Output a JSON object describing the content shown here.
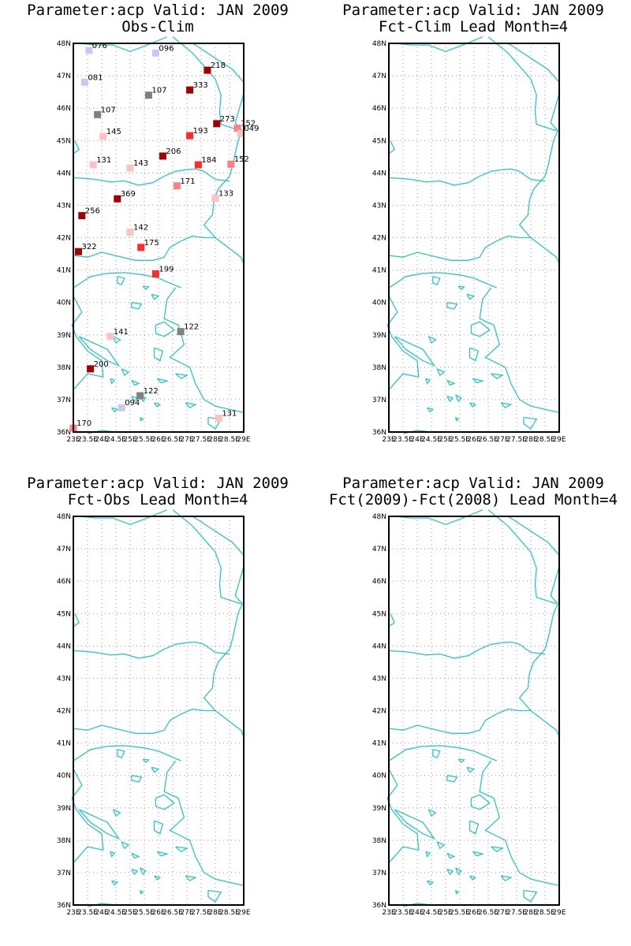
{
  "colors": {
    "coast": "#2ec4c4",
    "frame": "#000000",
    "grid": "#999999",
    "neg_light": "#c8c8f5",
    "neutral": "#808080",
    "pos_light": "#ffc0c0",
    "pos_mid": "#ff7f7f",
    "pos_strong": "#ff2a2a",
    "pos_dark": "#a00000"
  },
  "axes": {
    "lat_labels": [
      "36N",
      "37N",
      "38N",
      "39N",
      "40N",
      "41N",
      "42N",
      "43N",
      "44N",
      "45N",
      "46N",
      "47N",
      "48N"
    ],
    "lon_labels": [
      "23E",
      "23.5E",
      "24E",
      "24.5E",
      "25E",
      "25.5E",
      "26E",
      "26.5E",
      "27E",
      "27.5E",
      "28E",
      "28.5E",
      "29E"
    ],
    "lon_range": [
      23,
      29
    ],
    "lat_range": [
      36,
      48
    ],
    "grid": true
  },
  "panels": [
    {
      "title_line1": "Parameter:acp Valid: JAN 2009",
      "title_line2": "Obs-Clim",
      "has_stations": true
    },
    {
      "title_line1": "Parameter:acp Valid: JAN 2009",
      "title_line2": "Fct-Clim Lead Month=4",
      "has_stations": false
    },
    {
      "title_line1": "Parameter:acp Valid: JAN 2009",
      "title_line2": "Fct-Obs Lead Month=4",
      "has_stations": false
    },
    {
      "title_line1": "Parameter:acp Valid: JAN 2009",
      "title_line2": "Fct(2009)-Fct(2008) Lead Month=4",
      "has_stations": false
    }
  ],
  "chart_data": {
    "type": "scatter",
    "title": "Parameter:acp Valid: JAN 2009 Obs-Clim",
    "xlabel": "",
    "ylabel": "",
    "xlim": [
      23,
      29
    ],
    "ylim": [
      36,
      48
    ],
    "stations": [
      {
        "lon": 23.55,
        "lat": 47.78,
        "value": "076",
        "color_class": "neg_light"
      },
      {
        "lon": 25.9,
        "lat": 47.7,
        "value": "096",
        "color_class": "neg_light"
      },
      {
        "lon": 27.72,
        "lat": 47.17,
        "value": "218",
        "color_class": "pos_dark"
      },
      {
        "lon": 23.4,
        "lat": 46.8,
        "value": "081",
        "color_class": "neg_light"
      },
      {
        "lon": 27.1,
        "lat": 46.56,
        "value": "333",
        "color_class": "pos_dark"
      },
      {
        "lon": 25.65,
        "lat": 46.4,
        "value": "107",
        "color_class": "neutral"
      },
      {
        "lon": 23.85,
        "lat": 45.8,
        "value": "107",
        "color_class": "neutral"
      },
      {
        "lon": 28.05,
        "lat": 45.52,
        "value": "273",
        "color_class": "pos_dark"
      },
      {
        "lon": 28.78,
        "lat": 45.38,
        "value": "152",
        "color_class": "pos_mid"
      },
      {
        "lon": 28.9,
        "lat": 45.22,
        "value": "049",
        "color_class": "pos_light"
      },
      {
        "lon": 27.1,
        "lat": 45.15,
        "value": "193",
        "color_class": "pos_strong"
      },
      {
        "lon": 24.05,
        "lat": 45.13,
        "value": "145",
        "color_class": "pos_light"
      },
      {
        "lon": 26.15,
        "lat": 44.52,
        "value": "206",
        "color_class": "pos_dark"
      },
      {
        "lon": 23.7,
        "lat": 44.25,
        "value": "131",
        "color_class": "pos_light"
      },
      {
        "lon": 25.0,
        "lat": 44.15,
        "value": "143",
        "color_class": "pos_light"
      },
      {
        "lon": 27.4,
        "lat": 44.25,
        "value": "184",
        "color_class": "pos_strong"
      },
      {
        "lon": 28.55,
        "lat": 44.27,
        "value": "152",
        "color_class": "pos_mid"
      },
      {
        "lon": 26.65,
        "lat": 43.6,
        "value": "171",
        "color_class": "pos_mid"
      },
      {
        "lon": 28.0,
        "lat": 43.22,
        "value": "133",
        "color_class": "pos_light"
      },
      {
        "lon": 24.55,
        "lat": 43.2,
        "value": "369",
        "color_class": "pos_dark"
      },
      {
        "lon": 23.3,
        "lat": 42.68,
        "value": "256",
        "color_class": "pos_dark"
      },
      {
        "lon": 25.0,
        "lat": 42.17,
        "value": "142",
        "color_class": "pos_light"
      },
      {
        "lon": 25.38,
        "lat": 41.7,
        "value": "175",
        "color_class": "pos_strong"
      },
      {
        "lon": 23.18,
        "lat": 41.57,
        "value": "322",
        "color_class": "pos_dark"
      },
      {
        "lon": 25.9,
        "lat": 40.88,
        "value": "199",
        "color_class": "pos_strong"
      },
      {
        "lon": 26.78,
        "lat": 39.1,
        "value": "122",
        "color_class": "neutral"
      },
      {
        "lon": 24.3,
        "lat": 38.95,
        "value": "141",
        "color_class": "pos_light"
      },
      {
        "lon": 23.6,
        "lat": 37.95,
        "value": "200",
        "color_class": "pos_dark"
      },
      {
        "lon": 25.35,
        "lat": 37.12,
        "value": "122",
        "color_class": "neutral"
      },
      {
        "lon": 24.7,
        "lat": 36.75,
        "value": "094",
        "color_class": "neg_light"
      },
      {
        "lon": 28.12,
        "lat": 36.42,
        "value": "131",
        "color_class": "pos_light"
      },
      {
        "lon": 23.0,
        "lat": 36.12,
        "value": "170",
        "color_class": "pos_mid"
      }
    ]
  }
}
